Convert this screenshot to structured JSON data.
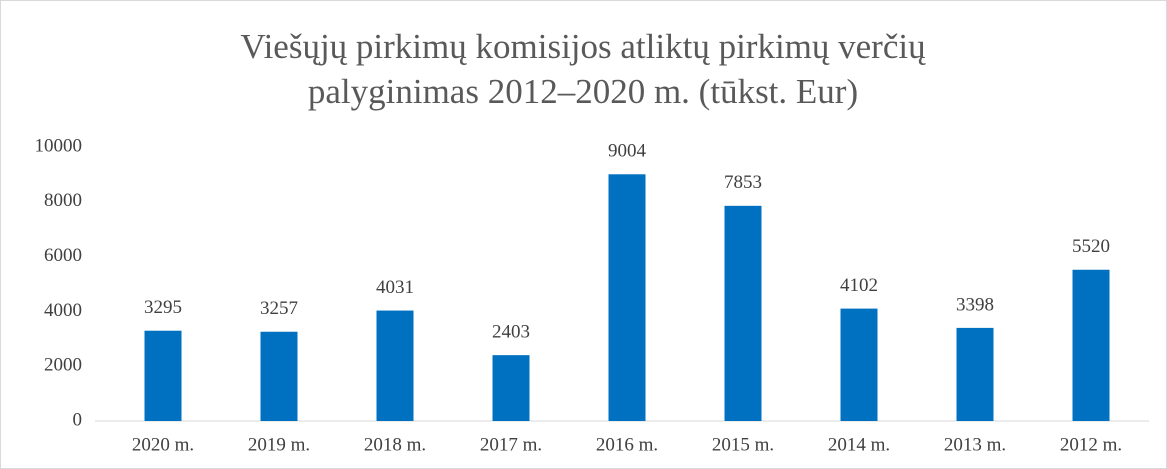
{
  "chart_data": {
    "type": "bar",
    "title": [
      "Viešųjų pirkimų komisijos atliktų pirkimų verčių",
      "palyginimas 2012–2020 m. (tūkst. Eur)"
    ],
    "categories": [
      "2020 m.",
      "2019 m.",
      "2018 m.",
      "2017 m.",
      "2016 m.",
      "2015 m.",
      "2014 m.",
      "2013 m.",
      "2012 m."
    ],
    "values": [
      3295,
      3257,
      4031,
      2403,
      9004,
      7853,
      4102,
      3398,
      5520
    ],
    "color": "#0070c0",
    "ylim": [
      0,
      10000
    ],
    "yticks": [
      0,
      2000,
      4000,
      6000,
      8000,
      10000
    ],
    "grid": false
  }
}
